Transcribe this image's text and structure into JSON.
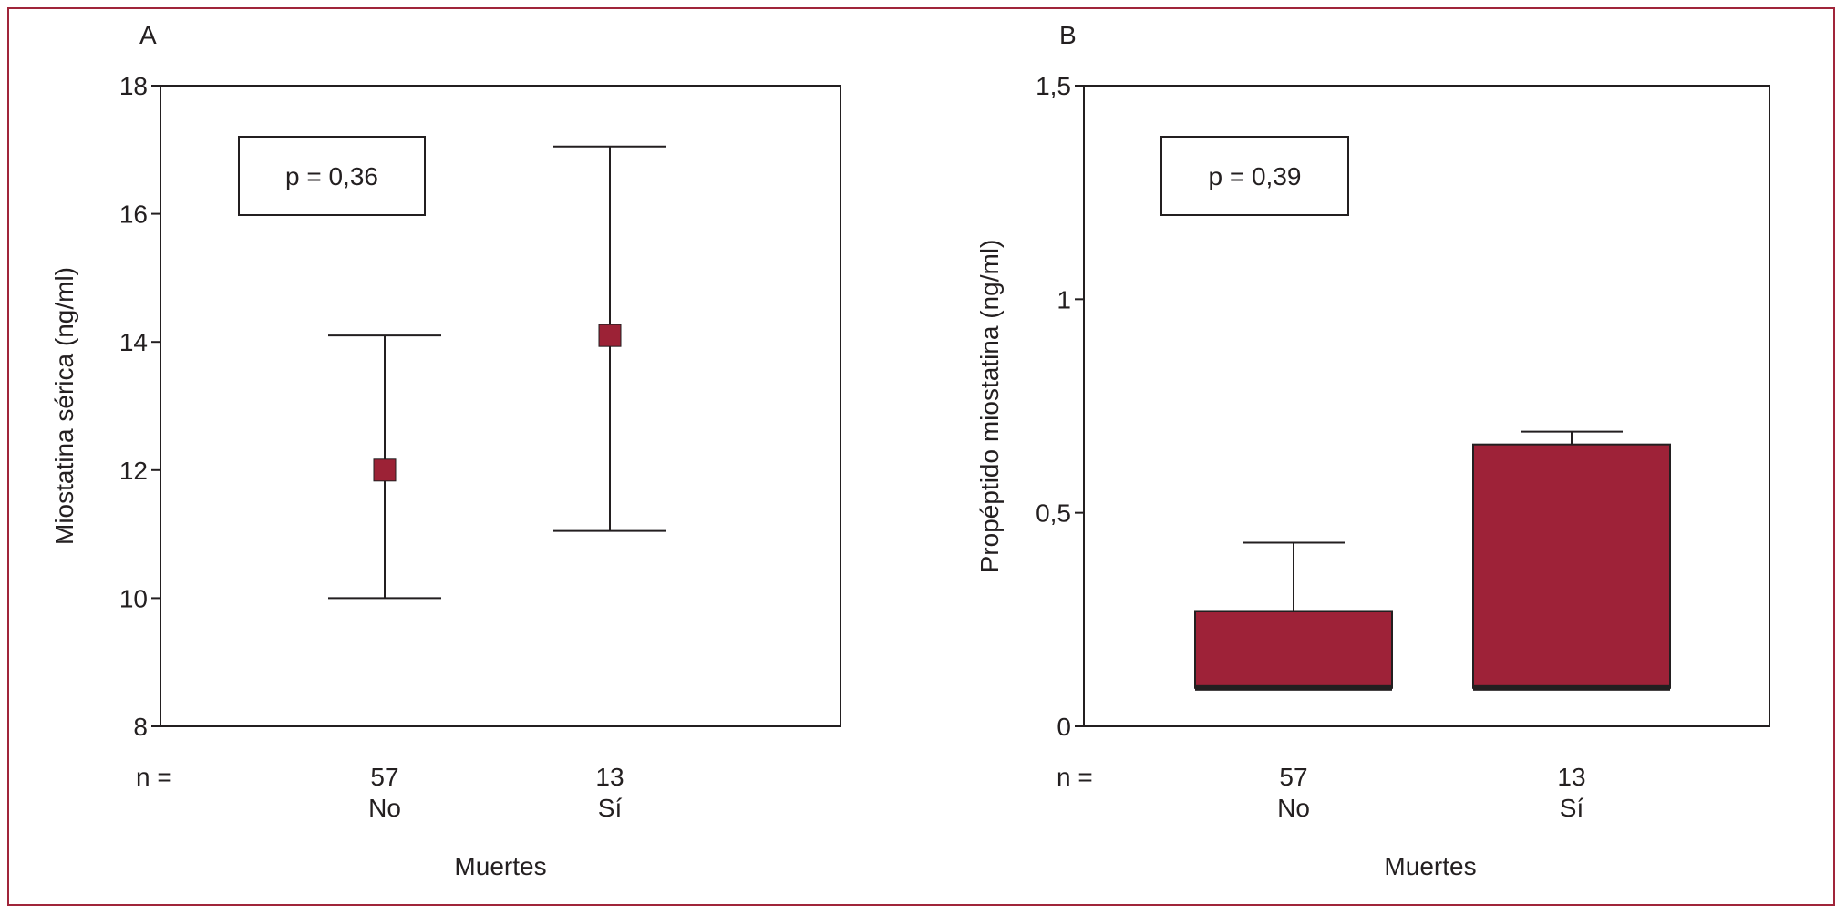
{
  "colors": {
    "frame": "#a0253a",
    "marker": "#9c2236",
    "bar": "#9e2238",
    "ink": "#231f20"
  },
  "chart_data": [
    {
      "type": "scatter",
      "panel_label": "A",
      "ylabel": "Miostatina sérica (ng/ml)",
      "xlabel": "Muertes",
      "ylim": [
        8,
        18
      ],
      "yticks": [
        8,
        10,
        12,
        14,
        16,
        18
      ],
      "ytick_labels": [
        "8",
        "10",
        "12",
        "14",
        "16",
        "18"
      ],
      "n_label": "n =",
      "categories": [
        "No",
        "Sí"
      ],
      "n_values": [
        "57",
        "13"
      ],
      "mean": [
        12.0,
        14.1
      ],
      "error_low": [
        10.0,
        11.05
      ],
      "error_high": [
        14.1,
        17.05
      ],
      "annotation": "p = 0,36"
    },
    {
      "type": "bar",
      "panel_label": "B",
      "ylabel": "Propéptido miostatina (ng/ml)",
      "xlabel": "Muertes",
      "ylim": [
        0,
        1.5
      ],
      "yticks": [
        0,
        0.5,
        1,
        1.5
      ],
      "ytick_labels": [
        "0",
        "0,5",
        "1",
        "1,5"
      ],
      "n_label": "n =",
      "categories": [
        "No",
        "Sí"
      ],
      "n_values": [
        "57",
        "13"
      ],
      "box_low": [
        0.09,
        0.09
      ],
      "box_high": [
        0.27,
        0.66
      ],
      "error_high": [
        0.43,
        0.69
      ],
      "annotation": "p = 0,39"
    }
  ]
}
